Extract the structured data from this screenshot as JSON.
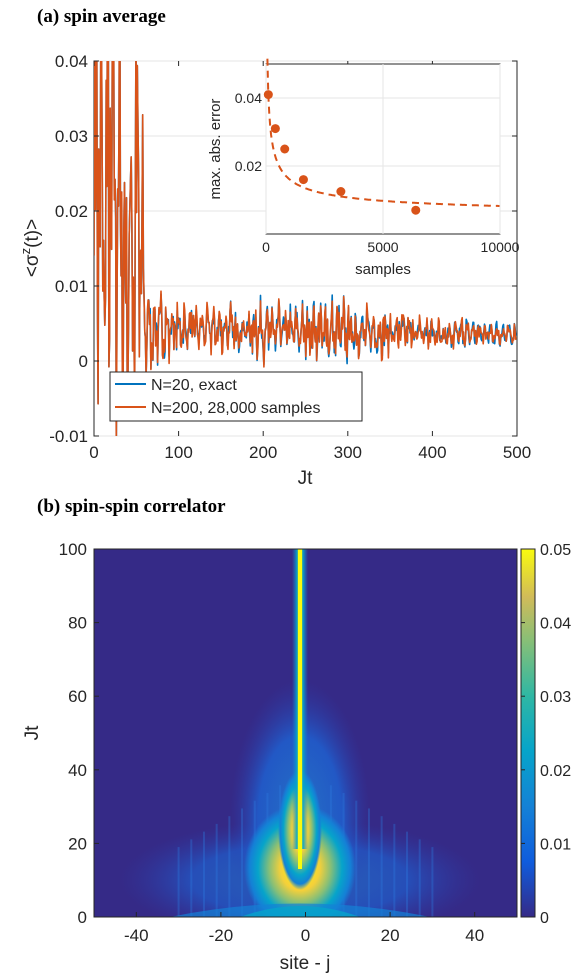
{
  "panels": {
    "a_title": "(a) spin average",
    "b_title": "(b) spin-spin correlator"
  },
  "chart_data": [
    {
      "type": "line",
      "xlabel": "Jt",
      "ylabel": "<σz(t)>",
      "xlim": [
        0,
        500
      ],
      "ylim": [
        -0.01,
        0.04
      ],
      "xticks": [
        "0",
        "100",
        "200",
        "300",
        "400",
        "500"
      ],
      "yticks": [
        "-0.01",
        "0",
        "0.01",
        "0.02",
        "0.03",
        "0.04"
      ],
      "grid": true,
      "legend_position": "bottom-left",
      "series": [
        {
          "name": "N=20, exact",
          "color": "#0072BD"
        },
        {
          "name": "N=200, 28,000 samples",
          "color": "#D95319"
        }
      ],
      "x": [
        0,
        5,
        10,
        15,
        20,
        25,
        30,
        35,
        40,
        45,
        50,
        55,
        60,
        70,
        80,
        90,
        100,
        120,
        140,
        160,
        180,
        200,
        220,
        240,
        260,
        280,
        300,
        320,
        340,
        360,
        380,
        400,
        420,
        440,
        460,
        480,
        500
      ],
      "envelope": [
        0.038,
        0.04,
        0.03,
        0.035,
        0.04,
        0.04,
        0.037,
        0.02,
        0.015,
        0.03,
        0.035,
        0.025,
        0.012,
        0.008,
        0.007,
        0.007,
        0.005,
        0.006,
        0.005,
        0.006,
        0.005,
        0.006,
        0.006,
        0.005,
        0.006,
        0.007,
        0.006,
        0.005,
        0.005,
        0.005,
        0.005,
        0.004,
        0.003,
        0.003,
        0.002,
        0.002,
        0.002
      ]
    },
    {
      "type": "line",
      "subplot": "inset",
      "xlabel": "samples",
      "ylabel": "max. abs. error",
      "xlim": [
        0,
        10000
      ],
      "ylim": [
        0,
        0.05
      ],
      "xticks": [
        "0",
        "5000",
        "10000"
      ],
      "yticks": [
        "0.02",
        "0.04"
      ],
      "color": "#D95319",
      "points_x": [
        100,
        400,
        800,
        1600,
        3200,
        6400
      ],
      "points_y": [
        0.041,
        0.031,
        0.025,
        0.016,
        0.0125,
        0.007
      ],
      "fit_note_free": true
    },
    {
      "type": "heatmap",
      "xlabel": "site - j",
      "ylabel": "Jt",
      "xlim": [
        -50,
        50
      ],
      "ylim": [
        0,
        100
      ],
      "xticks": [
        "-40",
        "-20",
        "0",
        "20",
        "40"
      ],
      "yticks": [
        "0",
        "20",
        "40",
        "60",
        "80",
        "100"
      ],
      "colorbar_ticks": [
        "0",
        "0.01",
        "0.02",
        "0.03",
        "0.04",
        "0.05"
      ],
      "colorbar_range": [
        0,
        0.05
      ],
      "colormap": "parula"
    }
  ]
}
